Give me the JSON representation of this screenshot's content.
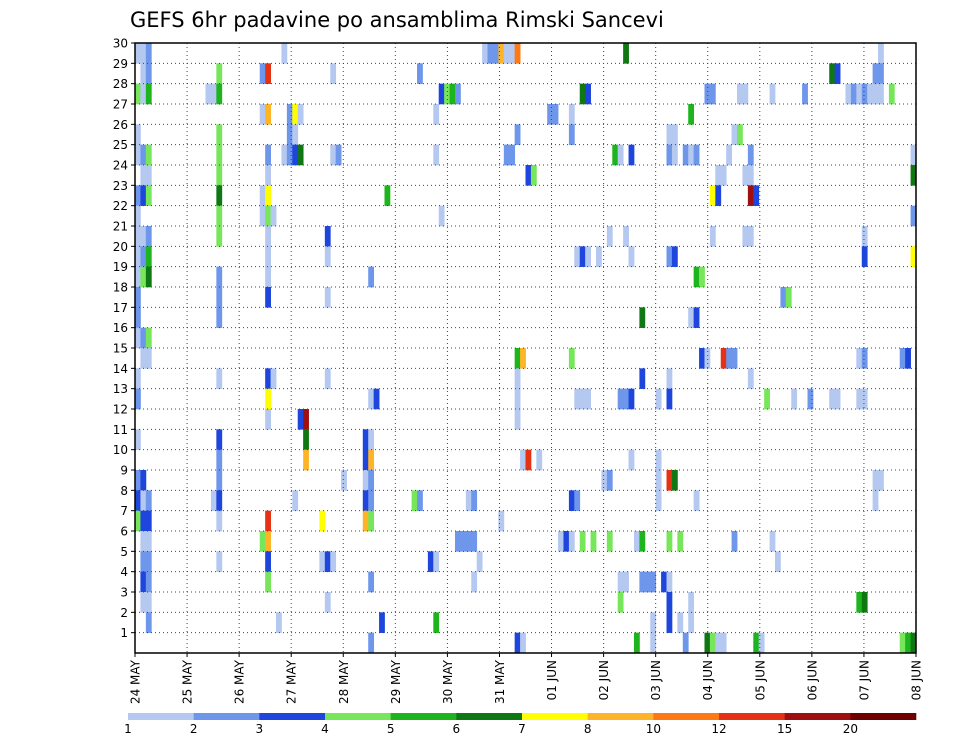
{
  "chart_data": {
    "type": "heatmap",
    "title": "GEFS 6hr padavine po ansamblima Rimski Sancevi",
    "xlabel": "",
    "ylabel": "",
    "x_tick_labels": [
      "24 MAY",
      "25 MAY",
      "26 MAY",
      "27 MAY",
      "28 MAY",
      "29 MAY",
      "30 MAY",
      "31 MAY",
      "01 JUN",
      "02 JUN",
      "03 JUN",
      "04 JUN",
      "05 JUN",
      "06 JUN",
      "07 JUN",
      "08 JUN"
    ],
    "x_range_days": [
      0,
      15
    ],
    "y_tick_labels": [
      "1",
      "2",
      "3",
      "4",
      "5",
      "6",
      "7",
      "8",
      "9",
      "10",
      "11",
      "12",
      "13",
      "14",
      "15",
      "16",
      "17",
      "18",
      "19",
      "20",
      "21",
      "22",
      "23",
      "24",
      "25",
      "26",
      "27",
      "28",
      "29",
      "30"
    ],
    "y_range": [
      0,
      30
    ],
    "grid": true,
    "time_step_hours": 6,
    "legend": {
      "position": "bottom",
      "thresholds": [
        "1",
        "2",
        "3",
        "4",
        "5",
        "6",
        "7",
        "8",
        "10",
        "12",
        "15",
        "20"
      ],
      "colors": [
        "#b4c8f0",
        "#6e96eb",
        "#1e46dc",
        "#78e65a",
        "#1eb41e",
        "#0f7814",
        "#ffff00",
        "#ffb428",
        "#ff7814",
        "#e63214",
        "#a00f0f",
        "#6e0000"
      ]
    },
    "cells": [
      [
        0,
        30,
        1
      ],
      [
        1,
        30,
        1
      ],
      [
        2,
        30,
        2
      ],
      [
        27,
        30,
        1
      ],
      [
        64,
        30,
        1
      ],
      [
        65,
        30,
        2
      ],
      [
        66,
        30,
        2
      ],
      [
        67,
        30,
        8
      ],
      [
        68,
        30,
        1
      ],
      [
        69,
        30,
        1
      ],
      [
        70,
        30,
        9
      ],
      [
        90,
        30,
        6
      ],
      [
        137,
        30,
        1
      ],
      [
        1,
        29,
        1
      ],
      [
        2,
        29,
        2
      ],
      [
        15,
        29,
        4
      ],
      [
        23,
        29,
        2
      ],
      [
        24,
        29,
        10
      ],
      [
        36,
        29,
        1
      ],
      [
        52,
        29,
        2
      ],
      [
        128,
        29,
        6
      ],
      [
        129,
        29,
        3
      ],
      [
        136,
        29,
        2
      ],
      [
        137,
        29,
        2
      ],
      [
        0,
        28,
        4
      ],
      [
        1,
        28,
        1
      ],
      [
        2,
        28,
        5
      ],
      [
        13,
        28,
        1
      ],
      [
        14,
        28,
        1
      ],
      [
        15,
        28,
        5
      ],
      [
        56,
        28,
        3
      ],
      [
        57,
        28,
        4
      ],
      [
        58,
        28,
        5
      ],
      [
        59,
        28,
        2
      ],
      [
        82,
        28,
        6
      ],
      [
        83,
        28,
        3
      ],
      [
        105,
        28,
        2
      ],
      [
        106,
        28,
        2
      ],
      [
        111,
        28,
        1
      ],
      [
        112,
        28,
        1
      ],
      [
        117,
        28,
        1
      ],
      [
        123,
        28,
        2
      ],
      [
        131,
        28,
        1
      ],
      [
        132,
        28,
        2
      ],
      [
        133,
        28,
        1
      ],
      [
        134,
        28,
        2
      ],
      [
        135,
        28,
        1
      ],
      [
        136,
        28,
        1
      ],
      [
        137,
        28,
        1
      ],
      [
        139,
        28,
        4
      ],
      [
        23,
        27,
        1
      ],
      [
        24,
        27,
        8
      ],
      [
        28,
        27,
        2
      ],
      [
        29,
        27,
        7
      ],
      [
        30,
        27,
        1
      ],
      [
        55,
        27,
        1
      ],
      [
        76,
        27,
        2
      ],
      [
        77,
        27,
        2
      ],
      [
        80,
        27,
        1
      ],
      [
        102,
        27,
        5
      ],
      [
        0,
        26,
        1
      ],
      [
        15,
        26,
        4
      ],
      [
        28,
        26,
        2
      ],
      [
        29,
        26,
        1
      ],
      [
        70,
        26,
        2
      ],
      [
        80,
        26,
        2
      ],
      [
        98,
        26,
        1
      ],
      [
        99,
        26,
        1
      ],
      [
        110,
        26,
        1
      ],
      [
        111,
        26,
        4
      ],
      [
        0,
        25,
        1
      ],
      [
        1,
        25,
        2
      ],
      [
        2,
        25,
        4
      ],
      [
        15,
        25,
        4
      ],
      [
        24,
        25,
        2
      ],
      [
        27,
        25,
        1
      ],
      [
        28,
        25,
        2
      ],
      [
        29,
        25,
        3
      ],
      [
        30,
        25,
        6
      ],
      [
        36,
        25,
        1
      ],
      [
        37,
        25,
        2
      ],
      [
        55,
        25,
        1
      ],
      [
        68,
        25,
        2
      ],
      [
        69,
        25,
        2
      ],
      [
        88,
        25,
        5
      ],
      [
        89,
        25,
        1
      ],
      [
        91,
        25,
        3
      ],
      [
        98,
        25,
        2
      ],
      [
        99,
        25,
        1
      ],
      [
        101,
        25,
        2
      ],
      [
        102,
        25,
        1
      ],
      [
        103,
        25,
        2
      ],
      [
        109,
        25,
        1
      ],
      [
        113,
        25,
        2
      ],
      [
        143,
        25,
        1
      ],
      [
        1,
        24,
        1
      ],
      [
        2,
        24,
        1
      ],
      [
        15,
        24,
        4
      ],
      [
        24,
        24,
        1
      ],
      [
        72,
        24,
        3
      ],
      [
        73,
        24,
        4
      ],
      [
        107,
        24,
        1
      ],
      [
        108,
        24,
        1
      ],
      [
        112,
        24,
        1
      ],
      [
        113,
        24,
        1
      ],
      [
        143,
        24,
        6
      ],
      [
        0,
        23,
        2
      ],
      [
        1,
        23,
        3
      ],
      [
        2,
        23,
        4
      ],
      [
        15,
        23,
        6
      ],
      [
        23,
        23,
        1
      ],
      [
        24,
        23,
        7
      ],
      [
        46,
        23,
        5
      ],
      [
        106,
        23,
        7
      ],
      [
        107,
        23,
        3
      ],
      [
        113,
        23,
        11
      ],
      [
        114,
        23,
        3
      ],
      [
        0,
        22,
        1
      ],
      [
        15,
        22,
        4
      ],
      [
        23,
        22,
        1
      ],
      [
        24,
        22,
        4
      ],
      [
        25,
        22,
        1
      ],
      [
        56,
        22,
        1
      ],
      [
        143,
        22,
        2
      ],
      [
        0,
        21,
        1
      ],
      [
        1,
        21,
        1
      ],
      [
        2,
        21,
        2
      ],
      [
        15,
        21,
        4
      ],
      [
        24,
        21,
        1
      ],
      [
        35,
        21,
        3
      ],
      [
        87,
        21,
        1
      ],
      [
        90,
        21,
        1
      ],
      [
        106,
        21,
        1
      ],
      [
        112,
        21,
        1
      ],
      [
        113,
        21,
        1
      ],
      [
        134,
        21,
        1
      ],
      [
        0,
        20,
        1
      ],
      [
        1,
        20,
        2
      ],
      [
        2,
        20,
        5
      ],
      [
        24,
        20,
        1
      ],
      [
        35,
        20,
        1
      ],
      [
        81,
        20,
        1
      ],
      [
        82,
        20,
        3
      ],
      [
        83,
        20,
        1
      ],
      [
        85,
        20,
        1
      ],
      [
        91,
        20,
        1
      ],
      [
        98,
        20,
        2
      ],
      [
        99,
        20,
        3
      ],
      [
        134,
        20,
        3
      ],
      [
        143,
        20,
        7
      ],
      [
        0,
        19,
        1
      ],
      [
        1,
        19,
        4
      ],
      [
        2,
        19,
        6
      ],
      [
        15,
        19,
        2
      ],
      [
        24,
        19,
        1
      ],
      [
        43,
        19,
        2
      ],
      [
        103,
        19,
        5
      ],
      [
        104,
        19,
        4
      ],
      [
        0,
        18,
        2
      ],
      [
        15,
        18,
        2
      ],
      [
        24,
        18,
        3
      ],
      [
        35,
        18,
        1
      ],
      [
        119,
        18,
        2
      ],
      [
        120,
        18,
        4
      ],
      [
        0,
        17,
        2
      ],
      [
        15,
        17,
        2
      ],
      [
        93,
        17,
        6
      ],
      [
        102,
        17,
        1
      ],
      [
        103,
        17,
        3
      ],
      [
        0,
        16,
        1
      ],
      [
        1,
        16,
        2
      ],
      [
        2,
        16,
        4
      ],
      [
        1,
        15,
        1
      ],
      [
        2,
        15,
        1
      ],
      [
        70,
        15,
        5
      ],
      [
        71,
        15,
        8
      ],
      [
        80,
        15,
        4
      ],
      [
        104,
        15,
        3
      ],
      [
        105,
        15,
        1
      ],
      [
        108,
        15,
        10
      ],
      [
        109,
        15,
        2
      ],
      [
        110,
        15,
        2
      ],
      [
        133,
        15,
        1
      ],
      [
        134,
        15,
        2
      ],
      [
        141,
        15,
        2
      ],
      [
        142,
        15,
        3
      ],
      [
        0,
        14,
        1
      ],
      [
        15,
        14,
        1
      ],
      [
        24,
        14,
        3
      ],
      [
        25,
        14,
        1
      ],
      [
        35,
        14,
        1
      ],
      [
        70,
        14,
        1
      ],
      [
        93,
        14,
        3
      ],
      [
        98,
        14,
        1
      ],
      [
        113,
        14,
        1
      ],
      [
        0,
        13,
        2
      ],
      [
        24,
        13,
        7
      ],
      [
        43,
        13,
        1
      ],
      [
        44,
        13,
        3
      ],
      [
        70,
        13,
        1
      ],
      [
        81,
        13,
        1
      ],
      [
        82,
        13,
        1
      ],
      [
        83,
        13,
        1
      ],
      [
        89,
        13,
        2
      ],
      [
        90,
        13,
        2
      ],
      [
        91,
        13,
        3
      ],
      [
        96,
        13,
        1
      ],
      [
        98,
        13,
        3
      ],
      [
        116,
        13,
        4
      ],
      [
        121,
        13,
        1
      ],
      [
        124,
        13,
        2
      ],
      [
        128,
        13,
        1
      ],
      [
        129,
        13,
        1
      ],
      [
        133,
        13,
        1
      ],
      [
        134,
        13,
        1
      ],
      [
        24,
        12,
        1
      ],
      [
        30,
        12,
        3
      ],
      [
        31,
        12,
        11
      ],
      [
        70,
        12,
        1
      ],
      [
        0,
        11,
        1
      ],
      [
        15,
        11,
        3
      ],
      [
        31,
        11,
        6
      ],
      [
        42,
        11,
        3
      ],
      [
        43,
        11,
        1
      ],
      [
        15,
        10,
        2
      ],
      [
        31,
        10,
        8
      ],
      [
        42,
        10,
        3
      ],
      [
        43,
        10,
        8
      ],
      [
        71,
        10,
        1
      ],
      [
        72,
        10,
        10
      ],
      [
        74,
        10,
        1
      ],
      [
        91,
        10,
        1
      ],
      [
        96,
        10,
        1
      ],
      [
        0,
        9,
        2
      ],
      [
        1,
        9,
        3
      ],
      [
        15,
        9,
        2
      ],
      [
        38,
        9,
        1
      ],
      [
        42,
        9,
        1
      ],
      [
        43,
        9,
        2
      ],
      [
        86,
        9,
        1
      ],
      [
        87,
        9,
        2
      ],
      [
        96,
        9,
        1
      ],
      [
        98,
        9,
        10
      ],
      [
        99,
        9,
        6
      ],
      [
        136,
        9,
        1
      ],
      [
        137,
        9,
        1
      ],
      [
        0,
        8,
        3
      ],
      [
        1,
        8,
        1
      ],
      [
        2,
        8,
        2
      ],
      [
        14,
        8,
        1
      ],
      [
        15,
        8,
        3
      ],
      [
        29,
        8,
        1
      ],
      [
        42,
        8,
        3
      ],
      [
        43,
        8,
        2
      ],
      [
        51,
        8,
        4
      ],
      [
        52,
        8,
        2
      ],
      [
        61,
        8,
        1
      ],
      [
        62,
        8,
        2
      ],
      [
        80,
        8,
        3
      ],
      [
        81,
        8,
        2
      ],
      [
        96,
        8,
        1
      ],
      [
        103,
        8,
        1
      ],
      [
        136,
        8,
        1
      ],
      [
        0,
        7,
        4
      ],
      [
        1,
        7,
        3
      ],
      [
        2,
        7,
        3
      ],
      [
        15,
        7,
        1
      ],
      [
        24,
        7,
        10
      ],
      [
        34,
        7,
        7
      ],
      [
        42,
        7,
        8
      ],
      [
        43,
        7,
        4
      ],
      [
        67,
        7,
        1
      ],
      [
        1,
        6,
        1
      ],
      [
        2,
        6,
        1
      ],
      [
        23,
        6,
        4
      ],
      [
        24,
        6,
        8
      ],
      [
        59,
        6,
        2
      ],
      [
        60,
        6,
        2
      ],
      [
        61,
        6,
        2
      ],
      [
        62,
        6,
        2
      ],
      [
        78,
        6,
        1
      ],
      [
        79,
        6,
        3
      ],
      [
        80,
        6,
        1
      ],
      [
        82,
        6,
        4
      ],
      [
        84,
        6,
        4
      ],
      [
        87,
        6,
        4
      ],
      [
        92,
        6,
        1
      ],
      [
        93,
        6,
        5
      ],
      [
        98,
        6,
        4
      ],
      [
        100,
        6,
        4
      ],
      [
        110,
        6,
        2
      ],
      [
        117,
        6,
        1
      ],
      [
        1,
        5,
        2
      ],
      [
        2,
        5,
        2
      ],
      [
        15,
        5,
        1
      ],
      [
        24,
        5,
        3
      ],
      [
        34,
        5,
        1
      ],
      [
        35,
        5,
        3
      ],
      [
        36,
        5,
        1
      ],
      [
        54,
        5,
        3
      ],
      [
        55,
        5,
        1
      ],
      [
        63,
        5,
        1
      ],
      [
        118,
        5,
        1
      ],
      [
        1,
        4,
        3
      ],
      [
        2,
        4,
        2
      ],
      [
        24,
        4,
        4
      ],
      [
        43,
        4,
        2
      ],
      [
        62,
        4,
        1
      ],
      [
        89,
        4,
        1
      ],
      [
        90,
        4,
        1
      ],
      [
        93,
        4,
        2
      ],
      [
        94,
        4,
        2
      ],
      [
        95,
        4,
        2
      ],
      [
        97,
        4,
        3
      ],
      [
        98,
        4,
        1
      ],
      [
        1,
        3,
        1
      ],
      [
        2,
        3,
        1
      ],
      [
        35,
        3,
        1
      ],
      [
        89,
        3,
        4
      ],
      [
        98,
        3,
        3
      ],
      [
        102,
        3,
        1
      ],
      [
        133,
        3,
        5
      ],
      [
        134,
        3,
        6
      ],
      [
        2,
        2,
        2
      ],
      [
        26,
        2,
        1
      ],
      [
        45,
        2,
        3
      ],
      [
        55,
        2,
        5
      ],
      [
        95,
        2,
        1
      ],
      [
        98,
        2,
        3
      ],
      [
        100,
        2,
        1
      ],
      [
        102,
        2,
        1
      ],
      [
        43,
        1,
        2
      ],
      [
        70,
        1,
        3
      ],
      [
        71,
        1,
        1
      ],
      [
        92,
        1,
        5
      ],
      [
        95,
        1,
        1
      ],
      [
        101,
        1,
        2
      ],
      [
        105,
        1,
        6
      ],
      [
        106,
        1,
        4
      ],
      [
        107,
        1,
        1
      ],
      [
        108,
        1,
        1
      ],
      [
        114,
        1,
        5
      ],
      [
        115,
        1,
        1
      ],
      [
        141,
        1,
        4
      ],
      [
        142,
        1,
        5
      ],
      [
        143,
        1,
        6
      ]
    ]
  }
}
